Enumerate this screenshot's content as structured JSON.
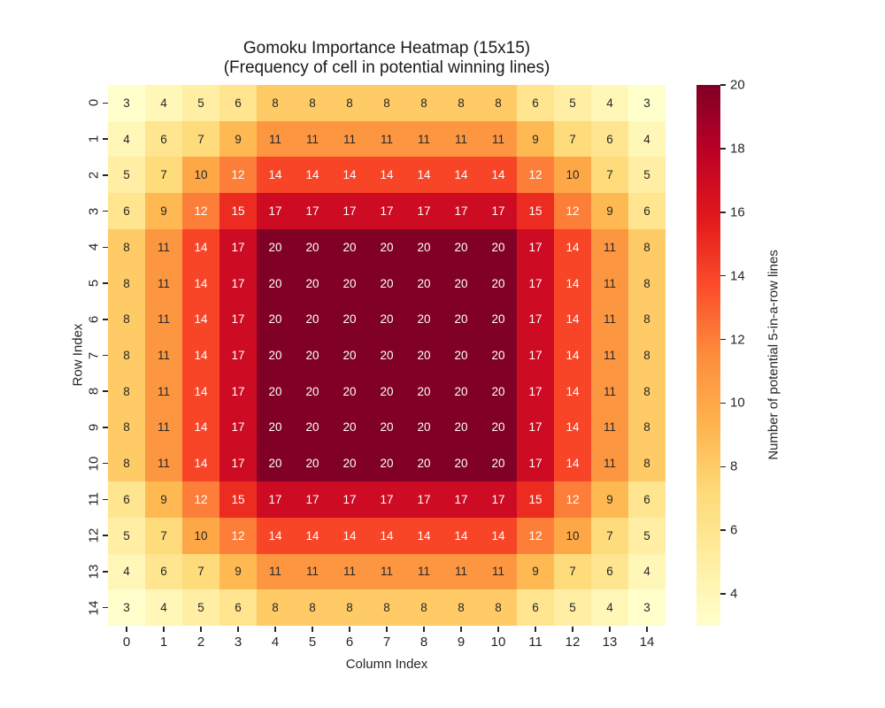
{
  "title": {
    "line1": "Gomoku Importance Heatmap (15x15)",
    "line2": "(Frequency of cell in potential winning lines)"
  },
  "chart_data": {
    "type": "heatmap",
    "title": "Gomoku Importance Heatmap (15x15)",
    "subtitle": "(Frequency of cell in potential winning lines)",
    "xlabel": "Column Index",
    "ylabel": "Row Index",
    "row_labels": [
      "0",
      "1",
      "2",
      "3",
      "4",
      "5",
      "6",
      "7",
      "8",
      "9",
      "10",
      "11",
      "12",
      "13",
      "14"
    ],
    "col_labels": [
      "0",
      "1",
      "2",
      "3",
      "4",
      "5",
      "6",
      "7",
      "8",
      "9",
      "10",
      "11",
      "12",
      "13",
      "14"
    ],
    "values": [
      [
        3,
        4,
        5,
        6,
        8,
        8,
        8,
        8,
        8,
        8,
        8,
        6,
        5,
        4,
        3
      ],
      [
        4,
        6,
        7,
        9,
        11,
        11,
        11,
        11,
        11,
        11,
        11,
        9,
        7,
        6,
        4
      ],
      [
        5,
        7,
        10,
        12,
        14,
        14,
        14,
        14,
        14,
        14,
        14,
        12,
        10,
        7,
        5
      ],
      [
        6,
        9,
        12,
        15,
        17,
        17,
        17,
        17,
        17,
        17,
        17,
        15,
        12,
        9,
        6
      ],
      [
        8,
        11,
        14,
        17,
        20,
        20,
        20,
        20,
        20,
        20,
        20,
        17,
        14,
        11,
        8
      ],
      [
        8,
        11,
        14,
        17,
        20,
        20,
        20,
        20,
        20,
        20,
        20,
        17,
        14,
        11,
        8
      ],
      [
        8,
        11,
        14,
        17,
        20,
        20,
        20,
        20,
        20,
        20,
        20,
        17,
        14,
        11,
        8
      ],
      [
        8,
        11,
        14,
        17,
        20,
        20,
        20,
        20,
        20,
        20,
        20,
        17,
        14,
        11,
        8
      ],
      [
        8,
        11,
        14,
        17,
        20,
        20,
        20,
        20,
        20,
        20,
        20,
        17,
        14,
        11,
        8
      ],
      [
        8,
        11,
        14,
        17,
        20,
        20,
        20,
        20,
        20,
        20,
        20,
        17,
        14,
        11,
        8
      ],
      [
        8,
        11,
        14,
        17,
        20,
        20,
        20,
        20,
        20,
        20,
        20,
        17,
        14,
        11,
        8
      ],
      [
        6,
        9,
        12,
        15,
        17,
        17,
        17,
        17,
        17,
        17,
        17,
        15,
        12,
        9,
        6
      ],
      [
        5,
        7,
        10,
        12,
        14,
        14,
        14,
        14,
        14,
        14,
        14,
        12,
        10,
        7,
        5
      ],
      [
        4,
        6,
        7,
        9,
        11,
        11,
        11,
        11,
        11,
        11,
        11,
        9,
        7,
        6,
        4
      ],
      [
        3,
        4,
        5,
        6,
        8,
        8,
        8,
        8,
        8,
        8,
        8,
        6,
        5,
        4,
        3
      ]
    ],
    "vmin": 3,
    "vmax": 20,
    "colormap": "YlOrRd",
    "colormap_stops": [
      "#ffffcc",
      "#ffeda0",
      "#fed976",
      "#feb24c",
      "#fd8d3c",
      "#fc4e2a",
      "#e31a1c",
      "#bd0026",
      "#800026"
    ],
    "grid": false,
    "colorbar": {
      "label": "Number of potential 5-in-a-row lines",
      "ticks": [
        4,
        6,
        8,
        10,
        12,
        14,
        16,
        18,
        20
      ]
    }
  },
  "colors": {
    "background": "#ffffff",
    "annot_dark": "#262626",
    "annot_light": "#ffffff",
    "tick_color": "#262626"
  }
}
